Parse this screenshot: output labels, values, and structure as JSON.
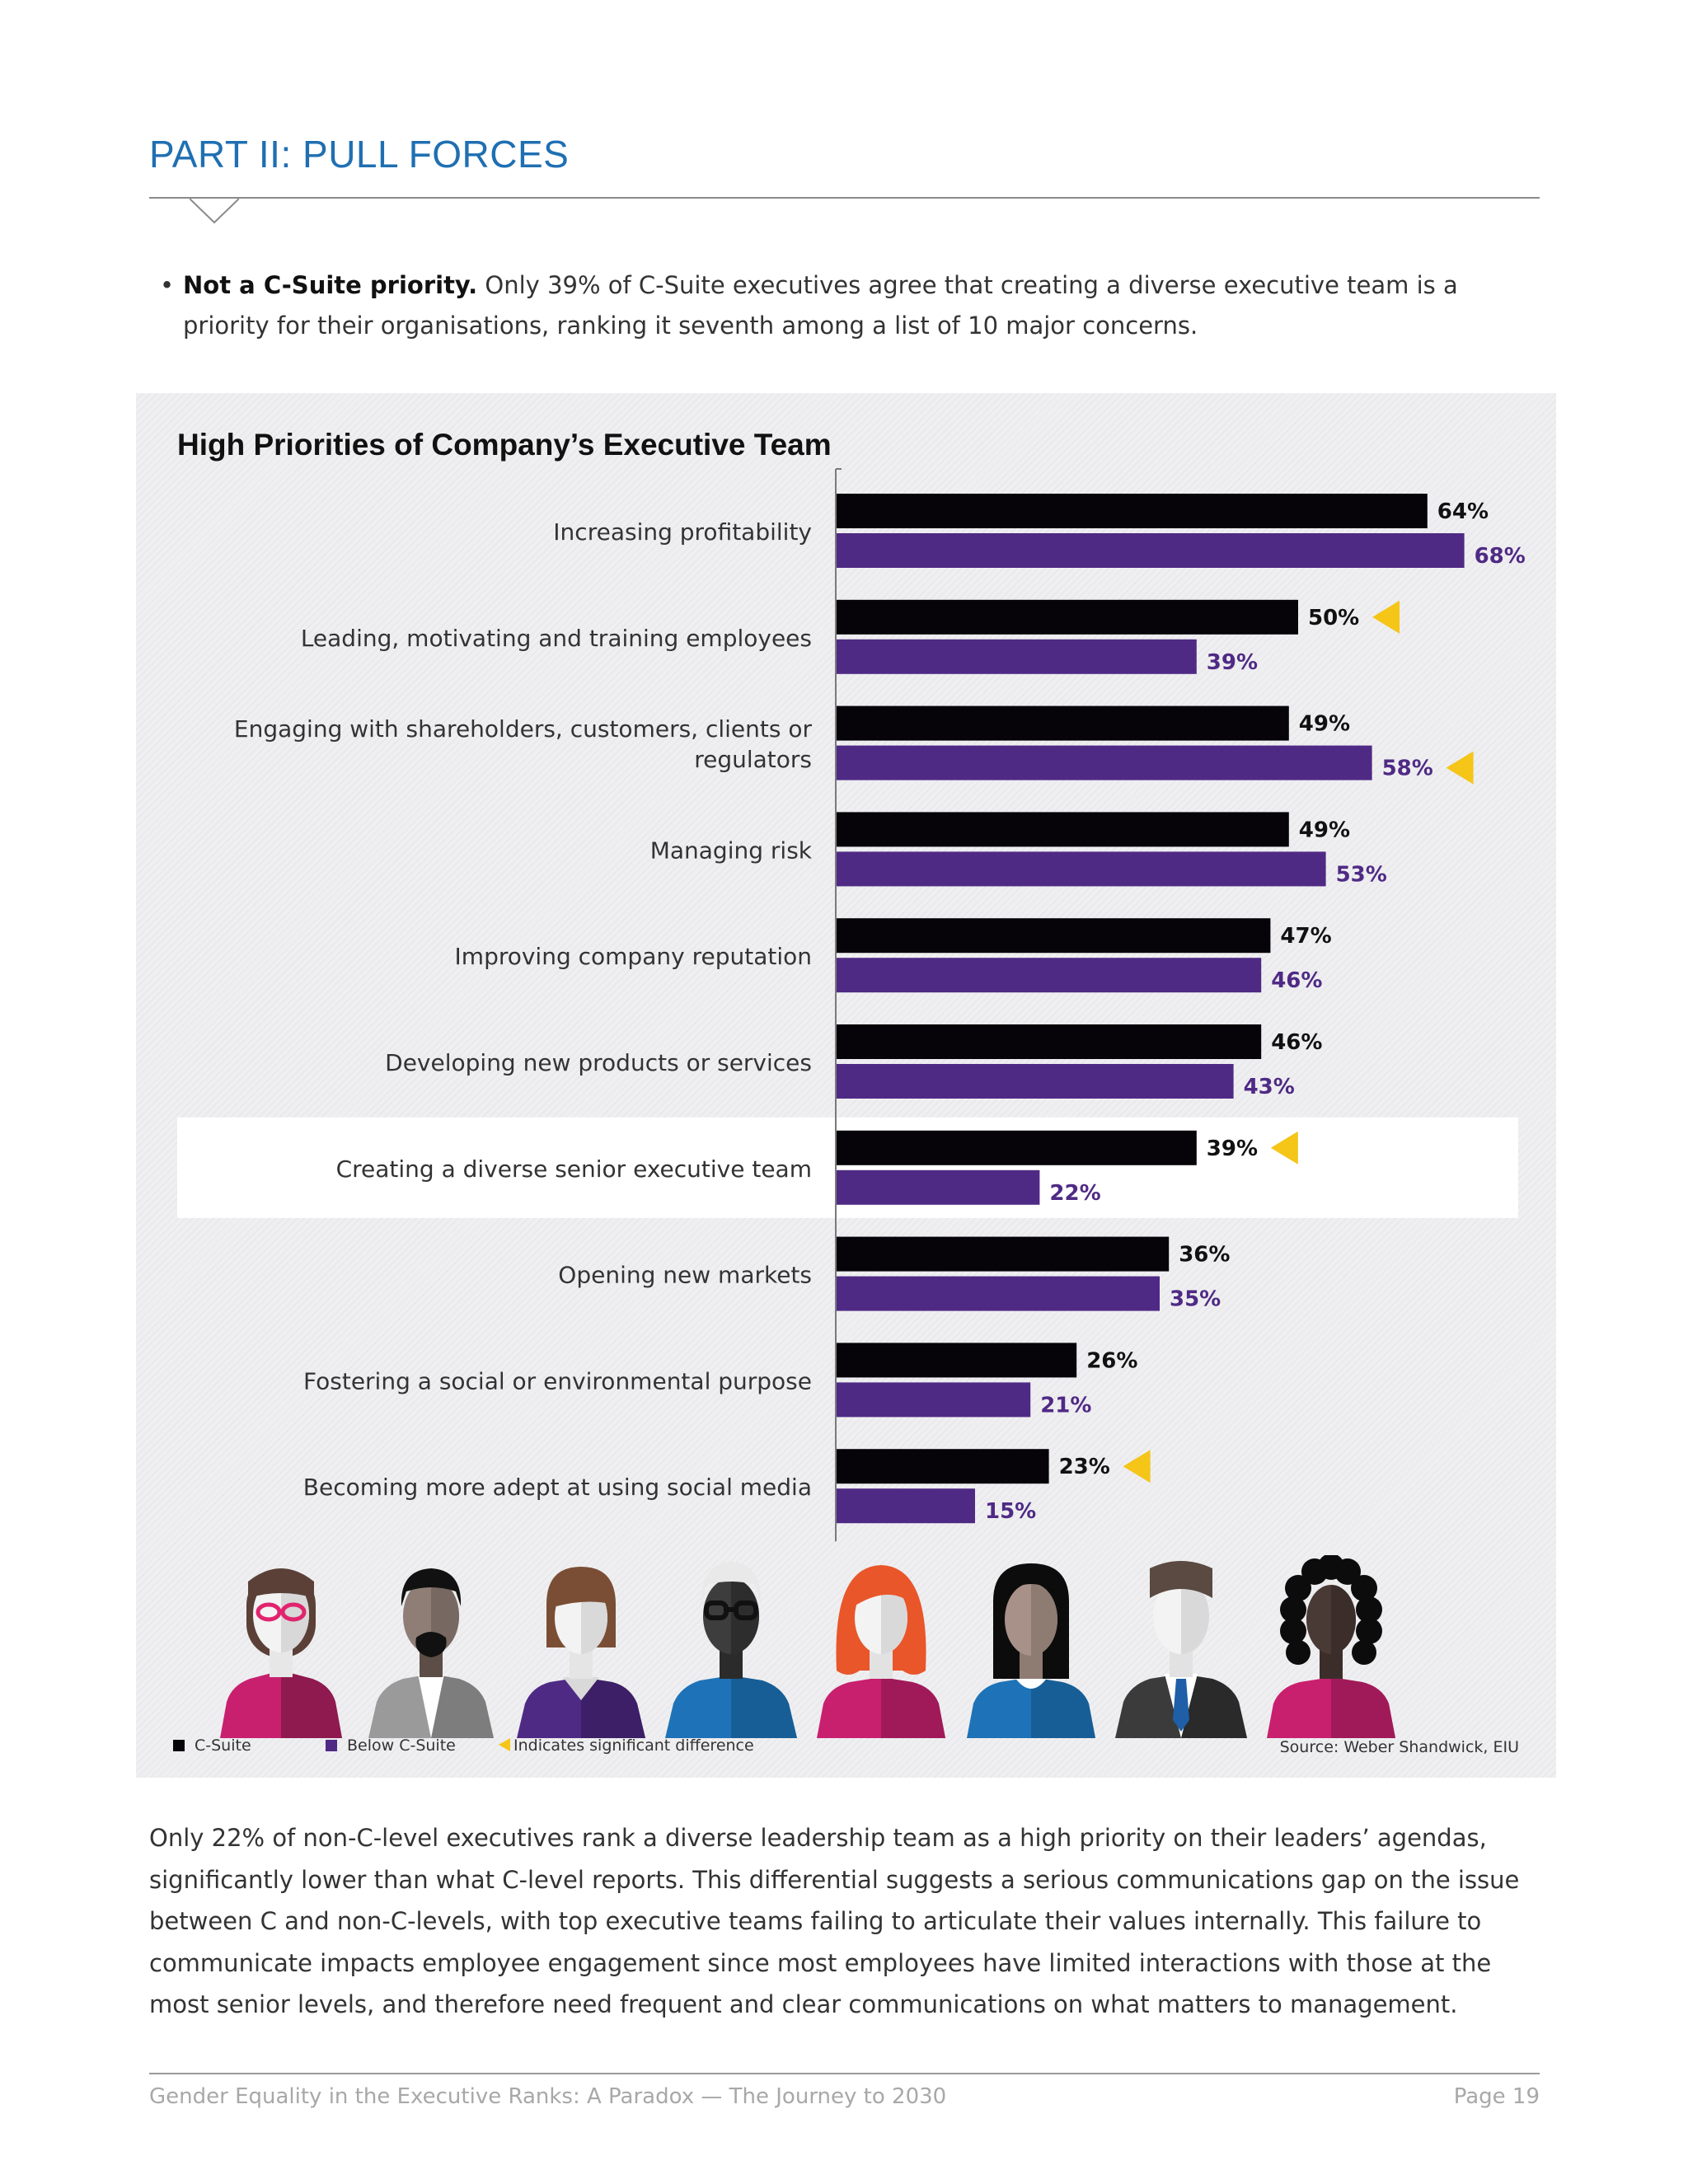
{
  "section": {
    "title": "PART II: PULL FORCES"
  },
  "bullet": {
    "lead": "Not a C-Suite priority.",
    "text": " Only 39% of C-Suite executives agree that creating a diverse executive team is a priority for their organisations, ranking it seventh among a list of 10 major concerns."
  },
  "chart_data": {
    "type": "bar",
    "orientation": "horizontal",
    "title": "High Priorities of Company’s Executive Team",
    "categories": [
      [
        "Increasing profitability"
      ],
      [
        "Leading, motivating and training employees"
      ],
      [
        "Engaging with shareholders, customers, clients or",
        "regulators"
      ],
      [
        "Managing risk"
      ],
      [
        "Improving company reputation"
      ],
      [
        "Developing new products or services"
      ],
      [
        "Creating a diverse senior executive team"
      ],
      [
        "Opening new markets"
      ],
      [
        "Fostering a social or environmental purpose"
      ],
      [
        "Becoming more adept at using social media"
      ]
    ],
    "series": [
      {
        "name": "C-Suite",
        "color": "#060408",
        "values": [
          64,
          50,
          49,
          49,
          47,
          46,
          39,
          36,
          26,
          23
        ]
      },
      {
        "name": "Below C-Suite",
        "color": "#4f2a85",
        "label_color": "#4f2a85",
        "values": [
          68,
          39,
          58,
          53,
          46,
          43,
          22,
          35,
          21,
          15
        ]
      }
    ],
    "value_suffix": "%",
    "significant_difference": [
      {
        "category_index": 1,
        "series": "C-Suite"
      },
      {
        "category_index": 2,
        "series": "Below C-Suite"
      },
      {
        "category_index": 6,
        "series": "C-Suite"
      },
      {
        "category_index": 9,
        "series": "C-Suite"
      }
    ],
    "highlighted_category_index": 6,
    "marker_color": "#f5c518",
    "legend": {
      "placement": "bottom-left",
      "marker_label": "Indicates significant difference"
    },
    "source": "Source: Weber Shandwick, EIU"
  },
  "people_icons": [
    "woman-glasses-icon",
    "man-beard-icon",
    "woman-bob-icon",
    "man-glasses-icon",
    "woman-red-hair-icon",
    "woman-long-hair-icon",
    "man-tie-icon",
    "woman-curly-hair-icon"
  ],
  "body": {
    "paragraph": "Only 22% of non-C-level executives rank a diverse leadership team as a high priority on their leaders’ agendas, significantly lower than what C-level reports. This differential suggests a serious communications gap on the issue between C and non-C-levels, with top executive teams failing to articulate their values internally. This failure to communicate impacts employee engagement since most employees have limited interactions with those at the most senior levels, and therefore need frequent and clear communications on what matters to management."
  },
  "footer": {
    "doc_title": "Gender Equality in the Executive Ranks: A Paradox — The Journey to 2030",
    "page": "Page 19"
  }
}
